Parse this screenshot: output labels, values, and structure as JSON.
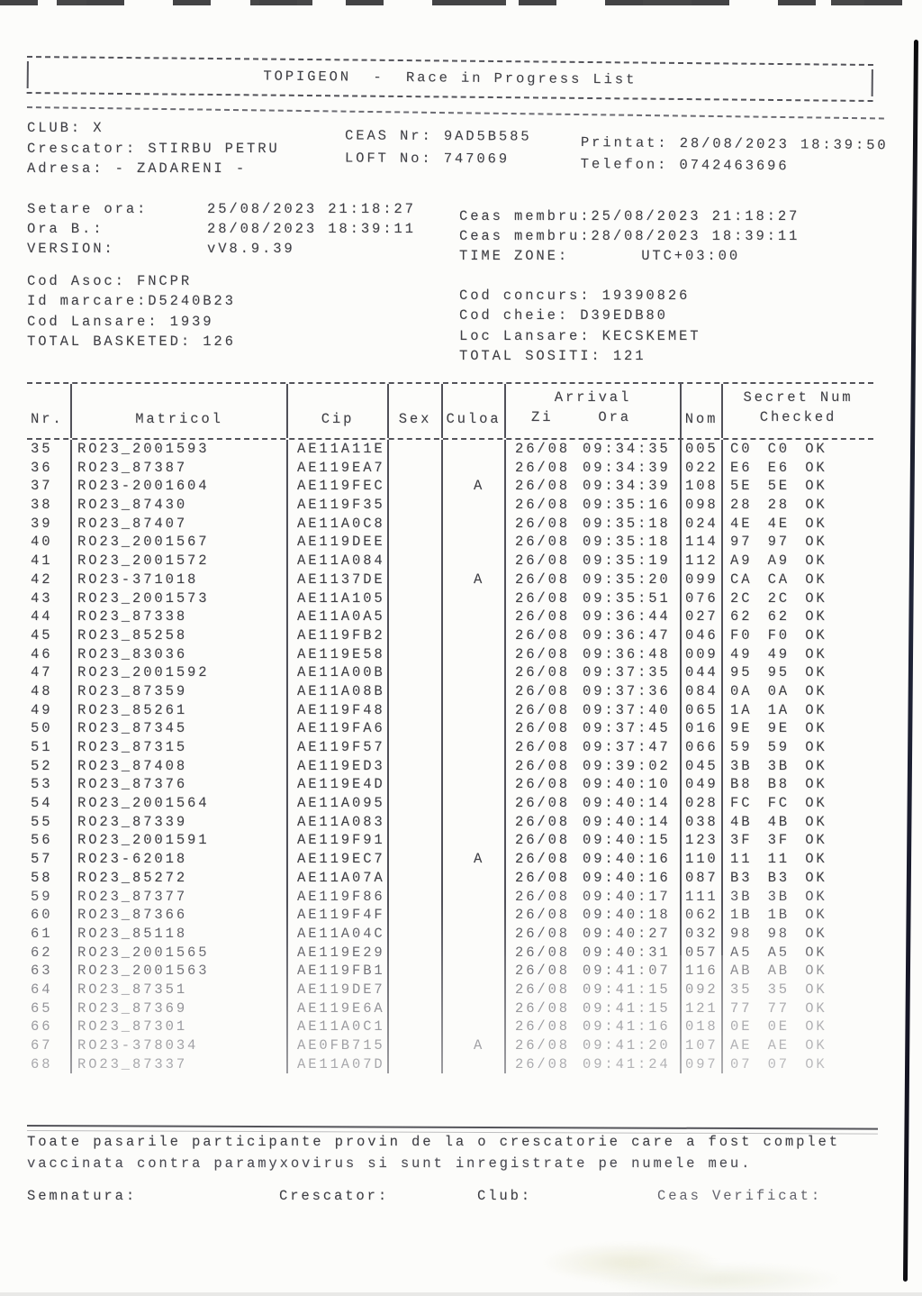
{
  "colors": {
    "paper": "#fcfcfa",
    "ink": "#3e3e44",
    "scan_edge": "#14141c"
  },
  "title_box": {
    "title": "TOPIGEON  -  Race in Progress List"
  },
  "club_info": {
    "club": "CLUB: X",
    "crescator": "Crescator: STIRBU PETRU",
    "adresa": "Adresa: - ZADARENI -",
    "ceas_nr": "CEAS Nr: 9AD5B585",
    "loft_no": "LOFT No: 747069",
    "printat": "Printat: 28/08/2023 18:39:50",
    "telefon": "Telefon: 0742463696"
  },
  "settings": {
    "left": [
      {
        "label": "Setare ora:",
        "value": "25/08/2023 21:18:27"
      },
      {
        "label": "Ora B.:",
        "value": "28/08/2023 18:39:11"
      },
      {
        "label": "VERSION:",
        "value": "vV8.9.39"
      }
    ],
    "right_line1": "Ceas membru:25/08/2023 21:18:27",
    "right_line2": "Ceas membru:28/08/2023 18:39:11",
    "timezone_label": "TIME ZONE:",
    "timezone_value": "UTC+03:00"
  },
  "codes_left": [
    "Cod Asoc: FNCPR",
    "Id marcare:D5240B23",
    "Cod Lansare: 1939",
    "TOTAL BASKETED: 126"
  ],
  "codes_right": [
    "Cod concurs: 19390826",
    "Cod cheie: D39EDB80",
    "Loc Lansare: KECSKEMET",
    "TOTAL SOSITI: 121"
  ],
  "table": {
    "col_nr": "Nr.",
    "col_matricol": "Matricol",
    "col_cip": "Cip",
    "col_sex": "Sex",
    "col_culoa": "Culoa",
    "col_arrival": "Arrival",
    "col_zi": "Zi",
    "col_ora": "Ora",
    "col_nom": "Nom",
    "col_secret_1": "Secret Num",
    "col_secret_2": "Checked",
    "rows": [
      {
        "nr": "35",
        "matricol": "RO23_2001593",
        "cip": "AE11A11E",
        "sex": "",
        "culoa": "",
        "zi": "26/08",
        "ora": "09:34:35",
        "nom": "005",
        "secret": "C0 C0 OK"
      },
      {
        "nr": "36",
        "matricol": "RO23_87387",
        "cip": "AE119EA7",
        "sex": "",
        "culoa": "",
        "zi": "26/08",
        "ora": "09:34:39",
        "nom": "022",
        "secret": "E6 E6 OK"
      },
      {
        "nr": "37",
        "matricol": "RO23-2001604",
        "cip": "AE119FEC",
        "sex": "",
        "culoa": "A",
        "zi": "26/08",
        "ora": "09:34:39",
        "nom": "108",
        "secret": "5E 5E OK"
      },
      {
        "nr": "38",
        "matricol": "RO23_87430",
        "cip": "AE119F35",
        "sex": "",
        "culoa": "",
        "zi": "26/08",
        "ora": "09:35:16",
        "nom": "098",
        "secret": "28 28 OK"
      },
      {
        "nr": "39",
        "matricol": "RO23_87407",
        "cip": "AE11A0C8",
        "sex": "",
        "culoa": "",
        "zi": "26/08",
        "ora": "09:35:18",
        "nom": "024",
        "secret": "4E 4E OK"
      },
      {
        "nr": "40",
        "matricol": "RO23_2001567",
        "cip": "AE119DEE",
        "sex": "",
        "culoa": "",
        "zi": "26/08",
        "ora": "09:35:18",
        "nom": "114",
        "secret": "97 97 OK"
      },
      {
        "nr": "41",
        "matricol": "RO23_2001572",
        "cip": "AE11A084",
        "sex": "",
        "culoa": "",
        "zi": "26/08",
        "ora": "09:35:19",
        "nom": "112",
        "secret": "A9 A9 OK"
      },
      {
        "nr": "42",
        "matricol": "RO23-371018",
        "cip": "AE1137DE",
        "sex": "",
        "culoa": "A",
        "zi": "26/08",
        "ora": "09:35:20",
        "nom": "099",
        "secret": "CA CA OK"
      },
      {
        "nr": "43",
        "matricol": "RO23_2001573",
        "cip": "AE11A105",
        "sex": "",
        "culoa": "",
        "zi": "26/08",
        "ora": "09:35:51",
        "nom": "076",
        "secret": "2C 2C OK"
      },
      {
        "nr": "44",
        "matricol": "RO23_87338",
        "cip": "AE11A0A5",
        "sex": "",
        "culoa": "",
        "zi": "26/08",
        "ora": "09:36:44",
        "nom": "027",
        "secret": "62 62 OK"
      },
      {
        "nr": "45",
        "matricol": "RO23_85258",
        "cip": "AE119FB2",
        "sex": "",
        "culoa": "",
        "zi": "26/08",
        "ora": "09:36:47",
        "nom": "046",
        "secret": "F0 F0 OK"
      },
      {
        "nr": "46",
        "matricol": "RO23_83036",
        "cip": "AE119E58",
        "sex": "",
        "culoa": "",
        "zi": "26/08",
        "ora": "09:36:48",
        "nom": "009",
        "secret": "49 49 OK"
      },
      {
        "nr": "47",
        "matricol": "RO23_2001592",
        "cip": "AE11A00B",
        "sex": "",
        "culoa": "",
        "zi": "26/08",
        "ora": "09:37:35",
        "nom": "044",
        "secret": "95 95 OK"
      },
      {
        "nr": "48",
        "matricol": "RO23_87359",
        "cip": "AE11A08B",
        "sex": "",
        "culoa": "",
        "zi": "26/08",
        "ora": "09:37:36",
        "nom": "084",
        "secret": "0A 0A OK"
      },
      {
        "nr": "49",
        "matricol": "RO23_85261",
        "cip": "AE119F48",
        "sex": "",
        "culoa": "",
        "zi": "26/08",
        "ora": "09:37:40",
        "nom": "065",
        "secret": "1A 1A OK"
      },
      {
        "nr": "50",
        "matricol": "RO23_87345",
        "cip": "AE119FA6",
        "sex": "",
        "culoa": "",
        "zi": "26/08",
        "ora": "09:37:45",
        "nom": "016",
        "secret": "9E 9E OK"
      },
      {
        "nr": "51",
        "matricol": "RO23_87315",
        "cip": "AE119F57",
        "sex": "",
        "culoa": "",
        "zi": "26/08",
        "ora": "09:37:47",
        "nom": "066",
        "secret": "59 59 OK"
      },
      {
        "nr": "52",
        "matricol": "RO23_87408",
        "cip": "AE119ED3",
        "sex": "",
        "culoa": "",
        "zi": "26/08",
        "ora": "09:39:02",
        "nom": "045",
        "secret": "3B 3B OK"
      },
      {
        "nr": "53",
        "matricol": "RO23_87376",
        "cip": "AE119E4D",
        "sex": "",
        "culoa": "",
        "zi": "26/08",
        "ora": "09:40:10",
        "nom": "049",
        "secret": "B8 B8 OK"
      },
      {
        "nr": "54",
        "matricol": "RO23_2001564",
        "cip": "AE11A095",
        "sex": "",
        "culoa": "",
        "zi": "26/08",
        "ora": "09:40:14",
        "nom": "028",
        "secret": "FC FC OK"
      },
      {
        "nr": "55",
        "matricol": "RO23_87339",
        "cip": "AE11A083",
        "sex": "",
        "culoa": "",
        "zi": "26/08",
        "ora": "09:40:14",
        "nom": "038",
        "secret": "4B 4B OK"
      },
      {
        "nr": "56",
        "matricol": "RO23_2001591",
        "cip": "AE119F91",
        "sex": "",
        "culoa": "",
        "zi": "26/08",
        "ora": "09:40:15",
        "nom": "123",
        "secret": "3F 3F OK"
      },
      {
        "nr": "57",
        "matricol": "RO23-62018",
        "cip": "AE119EC7",
        "sex": "",
        "culoa": "A",
        "zi": "26/08",
        "ora": "09:40:16",
        "nom": "110",
        "secret": "11 11 OK"
      },
      {
        "nr": "58",
        "matricol": "RO23_85272",
        "cip": "AE11A07A",
        "sex": "",
        "culoa": "",
        "zi": "26/08",
        "ora": "09:40:16",
        "nom": "087",
        "secret": "B3 B3 OK"
      },
      {
        "nr": "59",
        "matricol": "RO23_87377",
        "cip": "AE119F86",
        "sex": "",
        "culoa": "",
        "zi": "26/08",
        "ora": "09:40:17",
        "nom": "111",
        "secret": "3B 3B OK"
      },
      {
        "nr": "60",
        "matricol": "RO23_87366",
        "cip": "AE119F4F",
        "sex": "",
        "culoa": "",
        "zi": "26/08",
        "ora": "09:40:18",
        "nom": "062",
        "secret": "1B 1B OK"
      },
      {
        "nr": "61",
        "matricol": "RO23_85118",
        "cip": "AE11A04C",
        "sex": "",
        "culoa": "",
        "zi": "26/08",
        "ora": "09:40:27",
        "nom": "032",
        "secret": "98 98 OK"
      },
      {
        "nr": "62",
        "matricol": "RO23_2001565",
        "cip": "AE119E29",
        "sex": "",
        "culoa": "",
        "zi": "26/08",
        "ora": "09:40:31",
        "nom": "057",
        "secret": "A5 A5 OK"
      },
      {
        "nr": "63",
        "matricol": "RO23_2001563",
        "cip": "AE119FB1",
        "sex": "",
        "culoa": "",
        "zi": "26/08",
        "ora": "09:41:07",
        "nom": "116",
        "secret": "AB AB OK"
      },
      {
        "nr": "64",
        "matricol": "RO23_87351",
        "cip": "AE119DE7",
        "sex": "",
        "culoa": "",
        "zi": "26/08",
        "ora": "09:41:15",
        "nom": "092",
        "secret": "35 35 OK"
      },
      {
        "nr": "65",
        "matricol": "RO23_87369",
        "cip": "AE119E6A",
        "sex": "",
        "culoa": "",
        "zi": "26/08",
        "ora": "09:41:15",
        "nom": "121",
        "secret": "77 77 OK"
      },
      {
        "nr": "66",
        "matricol": "RO23_87301",
        "cip": "AE11A0C1",
        "sex": "",
        "culoa": "",
        "zi": "26/08",
        "ora": "09:41:16",
        "nom": "018",
        "secret": "0E 0E OK"
      },
      {
        "nr": "67",
        "matricol": "RO23-378034",
        "cip": "AE0FB715",
        "sex": "",
        "culoa": "A",
        "zi": "26/08",
        "ora": "09:41:20",
        "nom": "107",
        "secret": "AE AE OK"
      },
      {
        "nr": "68",
        "matricol": "RO23_87337",
        "cip": "AE11A07D",
        "sex": "",
        "culoa": "",
        "zi": "26/08",
        "ora": "09:41:24",
        "nom": "097",
        "secret": "07 07 OK"
      }
    ]
  },
  "footer": {
    "disclaimer_line1": "Toate pasarile participante provin de la o crescatorie care a fost complet",
    "disclaimer_line2": "vaccinata contra paramyxovirus si sunt inregistrate pe numele meu.",
    "semnatura": "Semnatura:",
    "crescator": "Crescator:",
    "club": "Club:",
    "ceas_verificat": "Ceas Verificat:"
  }
}
